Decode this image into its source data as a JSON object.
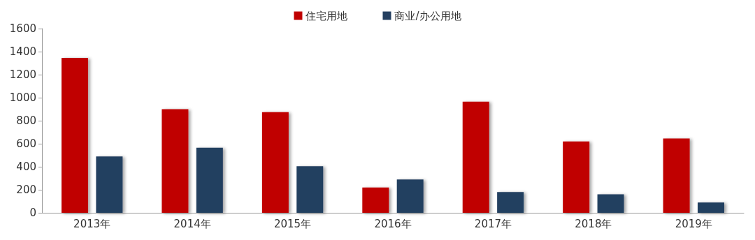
{
  "chart_data": {
    "type": "bar",
    "categories": [
      "2013年",
      "2014年",
      "2015年",
      "2016年",
      "2017年",
      "2018年",
      "2019年"
    ],
    "series": [
      {
        "name": "住宅用地",
        "color": "#c00000",
        "values": [
          1345,
          900,
          875,
          220,
          965,
          620,
          645
        ]
      },
      {
        "name": "商业/办公用地",
        "color": "#243f60",
        "values": [
          490,
          565,
          405,
          290,
          180,
          160,
          90
        ]
      }
    ],
    "ylim": [
      0,
      1600
    ],
    "yticks": [
      0,
      200,
      400,
      600,
      800,
      1000,
      1200,
      1400,
      1600
    ],
    "grid": false,
    "legend": "top"
  }
}
